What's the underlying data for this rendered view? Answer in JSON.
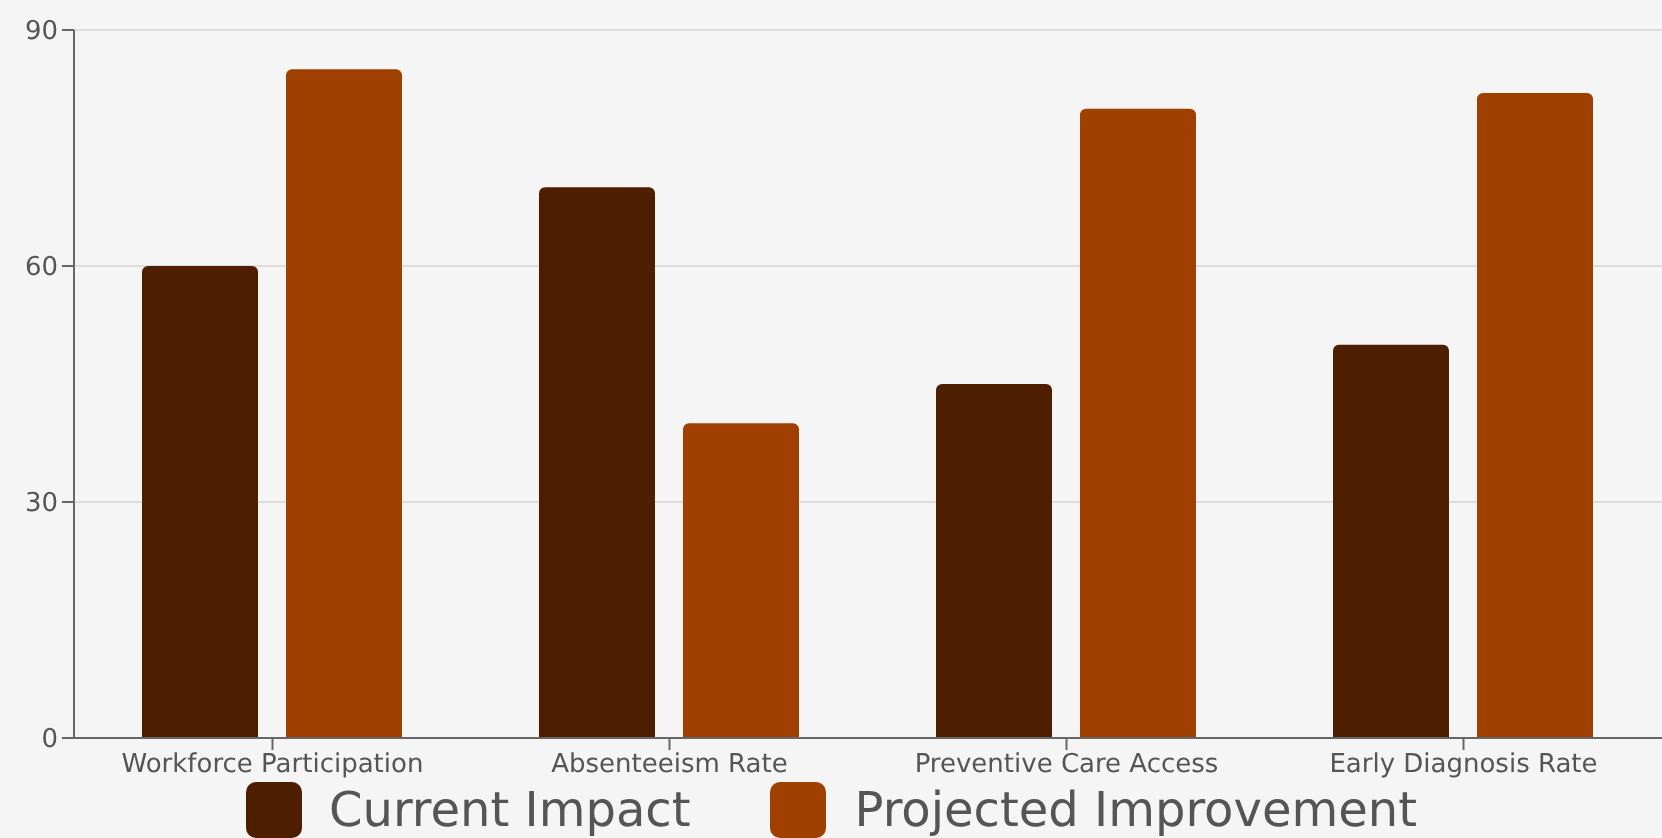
{
  "chart_data": {
    "type": "bar",
    "categories": [
      "Workforce Participation",
      "Absenteeism Rate",
      "Preventive Care Access",
      "Early Diagnosis Rate"
    ],
    "series": [
      {
        "name": "Current Impact",
        "color": "#4d1f00",
        "values": [
          60,
          70,
          45,
          50
        ]
      },
      {
        "name": "Projected Improvement",
        "color": "#a04000",
        "values": [
          85,
          40,
          80,
          82
        ]
      }
    ],
    "ylim": [
      0,
      90
    ],
    "yticks": [
      0,
      30,
      60,
      90
    ],
    "grid": "y",
    "legend": "bottom"
  }
}
